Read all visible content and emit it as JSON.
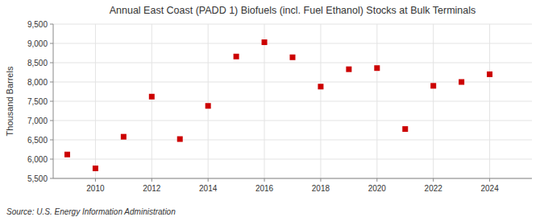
{
  "chart_data": {
    "type": "scatter",
    "title": "Annual East Coast (PADD 1) Biofuels (incl. Fuel Ethanol) Stocks at Bulk Terminals",
    "ylabel": "Thousand Barrels",
    "annotations": [
      "Source: U.S. Energy Information Administration"
    ],
    "x": [
      2009,
      2010,
      2011,
      2012,
      2013,
      2014,
      2015,
      2016,
      2017,
      2018,
      2019,
      2020,
      2021,
      2022,
      2023,
      2024
    ],
    "values": [
      6120,
      5760,
      6580,
      7620,
      6520,
      7380,
      8660,
      9030,
      8640,
      7880,
      8330,
      8360,
      6780,
      7900,
      8000,
      8200
    ],
    "color": "#cc0000",
    "marker": "square",
    "grid": true,
    "xlim": [
      2008.5,
      2025.5
    ],
    "xticks": [
      2010,
      2012,
      2014,
      2016,
      2018,
      2020,
      2022,
      2024
    ],
    "ylim": [
      5500,
      9500
    ],
    "yticks": [
      {
        "value": 5500,
        "label": "5,500"
      },
      {
        "value": 6000,
        "label": "6,000"
      },
      {
        "value": 6500,
        "label": "6,500"
      },
      {
        "value": 7000,
        "label": "7,000"
      },
      {
        "value": 7500,
        "label": "7,500"
      },
      {
        "value": 8000,
        "label": "8,000"
      },
      {
        "value": 8500,
        "label": "8,500"
      },
      {
        "value": 9000,
        "label": "9,000"
      },
      {
        "value": 9500,
        "label": "9,500"
      }
    ]
  }
}
